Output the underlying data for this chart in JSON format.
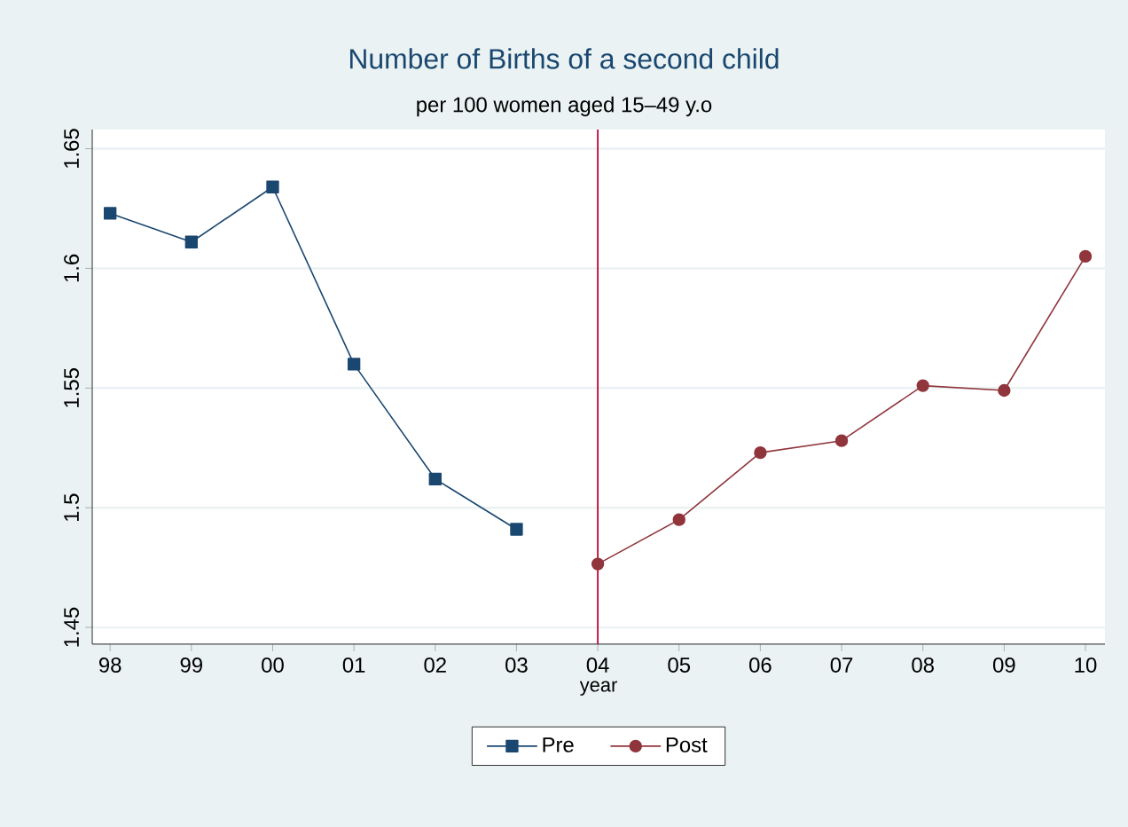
{
  "chart_data": {
    "type": "line",
    "title": "Number of Births of a second child",
    "subtitle": "per 100 women aged 15–49 y.o",
    "xlabel": "year",
    "categories": [
      "98",
      "99",
      "00",
      "01",
      "02",
      "03",
      "04",
      "05",
      "06",
      "07",
      "08",
      "09",
      "10"
    ],
    "series": [
      {
        "name": "Pre",
        "color": "#1a476f",
        "marker": "square",
        "values": [
          1.623,
          1.611,
          1.634,
          1.56,
          1.512,
          1.491,
          null,
          null,
          null,
          null,
          null,
          null,
          null
        ]
      },
      {
        "name": "Post",
        "color": "#90353b",
        "marker": "circle",
        "values": [
          null,
          null,
          null,
          null,
          null,
          null,
          1.4765,
          1.495,
          1.523,
          1.528,
          1.551,
          1.549,
          1.605
        ]
      }
    ],
    "ylim": [
      1.443,
      1.658
    ],
    "yticks": [
      1.45,
      1.5,
      1.55,
      1.6,
      1.65
    ],
    "ref_lines": [
      {
        "axis": "x",
        "value": "04",
        "color": "#c10534"
      }
    ],
    "grid": "y",
    "legend": "bottom",
    "line_style": "solid"
  }
}
